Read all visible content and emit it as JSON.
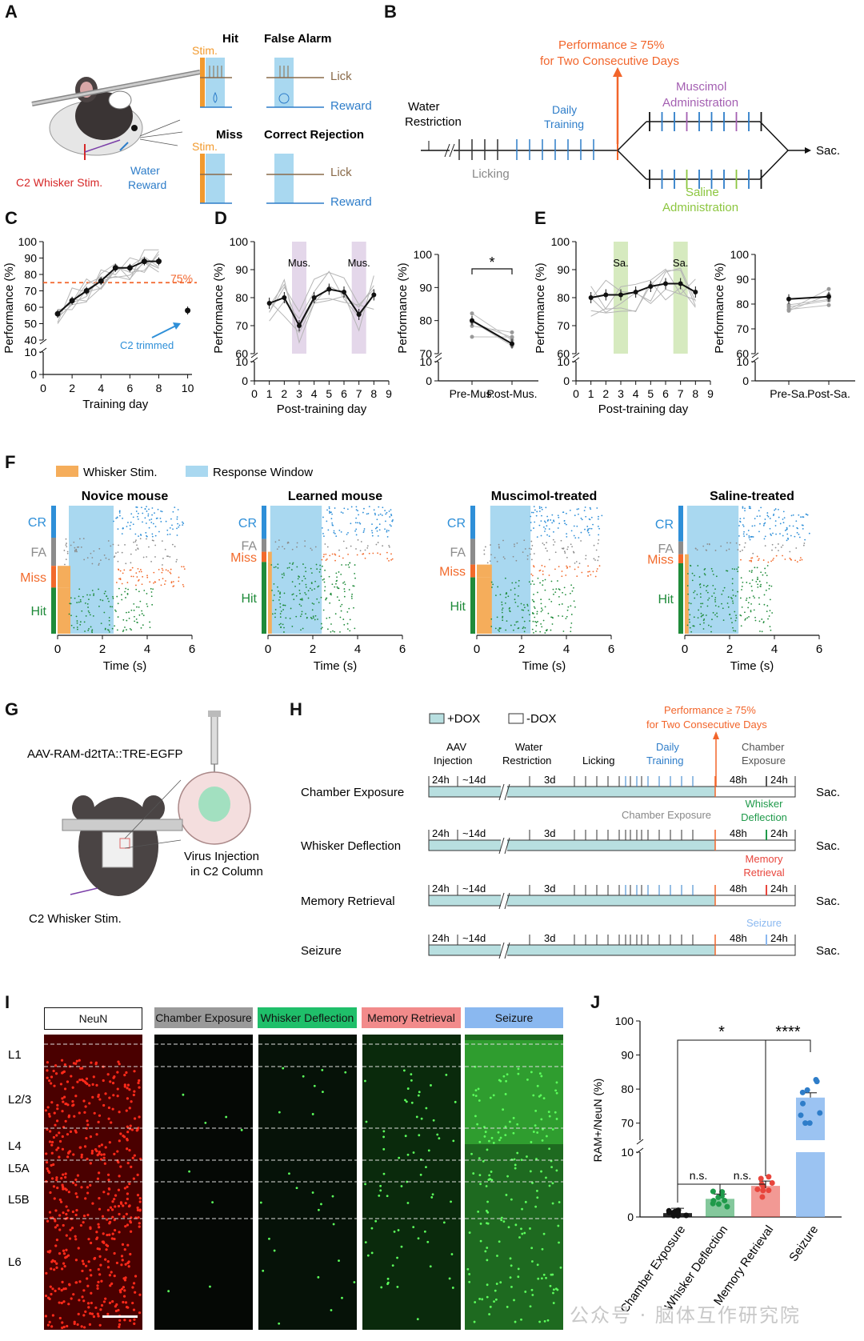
{
  "panels": {
    "A": {
      "letter": "A",
      "hit": "Hit",
      "false_alarm": "False Alarm",
      "miss": "Miss",
      "correct_rejection": "Correct Rejection",
      "stim": "Stim.",
      "lick": "Lick",
      "reward": "Reward",
      "whisker_stim": "C2 Whisker Stim.",
      "water_reward_1": "Water",
      "water_reward_2": "Reward",
      "colors": {
        "stim": "#f29a2e",
        "window": "#a9d8f0",
        "lick": "#8a6b4a",
        "reward": "#2e7dc9",
        "whisker": "#d62828"
      }
    },
    "B": {
      "letter": "B",
      "performance_1": "Performance ≥ 75%",
      "performance_2": "for Two Consecutive Days",
      "water_1": "Water",
      "water_2": "Restriction",
      "licking": "Licking",
      "daily_1": "Daily",
      "daily_2": "Training",
      "muscimol_1": "Muscimol",
      "muscimol_2": "Administration",
      "saline_1": "Saline",
      "saline_2": "Administration",
      "sac": "Sac.",
      "colors": {
        "orange": "#f2652b",
        "blue": "#2e7dc9",
        "purple": "#a45fb2",
        "green": "#8cc63f"
      }
    },
    "C": {
      "letter": "C",
      "ylabel": "Performance (%)",
      "xlabel": "Training day",
      "threshold_label": "75%",
      "annotation": "C2 trimmed"
    },
    "D": {
      "letter": "D",
      "ylabel": "Performance (%)",
      "xlabel": "Post-training day",
      "shade_label": "Mus.",
      "star": "*",
      "cat1": "Pre-Mus.",
      "cat2": "Post-Mus."
    },
    "E": {
      "letter": "E",
      "ylabel": "Performance (%)",
      "xlabel": "Post-training day",
      "shade_label": "Sa.",
      "cat1": "Pre-Sa.",
      "cat2": "Post-Sa."
    },
    "F": {
      "letter": "F",
      "legend_stim": "Whisker Stim.",
      "legend_window": "Response Window",
      "titles": [
        "Novice mouse",
        "Learned mouse",
        "Muscimol-treated",
        "Saline-treated"
      ],
      "rows": [
        "CR",
        "FA",
        "Miss",
        "Hit"
      ],
      "xlabel": "Time (s)",
      "colors": {
        "CR": "#2e8fd8",
        "FA": "#8c8c8c",
        "Miss": "#f26a2b",
        "Hit": "#1f8b3a"
      }
    },
    "G": {
      "letter": "G",
      "construct": "AAV-RAM-d2tTA::TRE-EGFP",
      "inj_1": "Virus Injection",
      "inj_2": "in C2 Column",
      "stim": "C2 Whisker Stim."
    },
    "H": {
      "letter": "H",
      "plus_dox": "+DOX",
      "minus_dox": "-DOX",
      "performance_1": "Performance ≥ 75%",
      "performance_2": "for Two Consecutive Days",
      "aav_1": "AAV",
      "aav_2": "Injection",
      "water_1": "Water",
      "water_2": "Restriction",
      "licking": "Licking",
      "daily_1": "Daily",
      "daily_2": "Training",
      "chamber_1": "Chamber",
      "chamber_2": "Exposure",
      "t24": "24h",
      "t14": "~14d",
      "t3": "3d",
      "t48": "48h",
      "sac": "Sac.",
      "rows": [
        "Chamber Exposure",
        "Whisker Deflection",
        "Memory Retrieval",
        "Seizure"
      ],
      "row2_note": "Chamber Exposure",
      "whisker_1": "Whisker",
      "whisker_2": "Deflection",
      "memory_1": "Memory",
      "memory_2": "Retrieval",
      "seizure": "Seizure"
    },
    "I": {
      "letter": "I",
      "headers": [
        "NeuN",
        "Chamber Exposure",
        "Whisker Deflection",
        "Memory Retrieval",
        "Seizure"
      ],
      "header_colors": [
        "#ffffff",
        "#9a9a9a",
        "#1fbf6a",
        "#f28b8b",
        "#8ab8f0"
      ],
      "layers": [
        "L1",
        "L2/3",
        "L4",
        "L5A",
        "L5B",
        "L6"
      ]
    },
    "J": {
      "letter": "J",
      "ylabel": "RAM+/NeuN (%)",
      "star1": "*",
      "star2": "****",
      "ns": "n.s."
    }
  },
  "watermark": "公众号 · 脑体互作研究院",
  "chart_data": [
    {
      "id": "C",
      "type": "line",
      "xlabel": "Training day",
      "ylabel": "Performance (%)",
      "ylim": [
        0,
        100
      ],
      "x_ticks": [
        0,
        2,
        4,
        6,
        8,
        10
      ],
      "y_ticks": [
        0,
        10,
        40,
        50,
        60,
        70,
        80,
        90,
        100
      ],
      "threshold": 75,
      "threshold_label": "75%",
      "x": [
        1,
        2,
        3,
        4,
        5,
        6,
        7,
        8
      ],
      "series": [
        {
          "values": [
            56,
            64,
            70,
            76,
            84,
            84,
            88,
            88
          ]
        }
      ],
      "extra_point": {
        "x": 10,
        "y": 58,
        "label": "C2 trimmed"
      }
    },
    {
      "id": "D-left",
      "type": "line",
      "xlabel": "Post-training day",
      "ylabel": "Performance (%)",
      "ylim": [
        0,
        100
      ],
      "x_ticks": [
        0,
        1,
        2,
        3,
        4,
        5,
        6,
        7,
        8,
        9
      ],
      "y_ticks": [
        0,
        10,
        60,
        70,
        80,
        90,
        100
      ],
      "shaded_days": [
        3,
        7
      ],
      "shade_label": "Mus.",
      "x": [
        1,
        2,
        3,
        4,
        5,
        6,
        7,
        8
      ],
      "series": [
        {
          "values": [
            78,
            80,
            70,
            80,
            83,
            82,
            74,
            81
          ]
        }
      ]
    },
    {
      "id": "D-right",
      "type": "line",
      "ylabel": "Performance (%)",
      "categories": [
        "Pre-Mus.",
        "Post-Mus."
      ],
      "ylim": [
        0,
        100
      ],
      "y_ticks": [
        0,
        10,
        70,
        80,
        90,
        100
      ],
      "series": [
        {
          "values": [
            80,
            73
          ]
        }
      ],
      "significance": "*"
    },
    {
      "id": "E-left",
      "type": "line",
      "xlabel": "Post-training day",
      "ylabel": "Performance (%)",
      "ylim": [
        0,
        100
      ],
      "x_ticks": [
        0,
        1,
        2,
        3,
        4,
        5,
        6,
        7,
        8,
        9
      ],
      "y_ticks": [
        0,
        10,
        60,
        70,
        80,
        90,
        100
      ],
      "shaded_days": [
        3,
        7
      ],
      "shade_label": "Sa.",
      "x": [
        1,
        2,
        3,
        4,
        5,
        6,
        7,
        8
      ],
      "series": [
        {
          "values": [
            80,
            81,
            81,
            82,
            84,
            85,
            85,
            82
          ]
        }
      ]
    },
    {
      "id": "E-right",
      "type": "line",
      "ylabel": "Performance (%)",
      "categories": [
        "Pre-Sa.",
        "Post-Sa."
      ],
      "ylim": [
        0,
        100
      ],
      "y_ticks": [
        0,
        10,
        60,
        70,
        80,
        90,
        100
      ],
      "series": [
        {
          "values": [
            82,
            83
          ]
        }
      ]
    },
    {
      "id": "J",
      "type": "bar",
      "ylabel": "RAM+/NeuN (%)",
      "categories": [
        "Chamber Exposure",
        "Whisker Deflection",
        "Memory Retrieval",
        "Seizure"
      ],
      "values": [
        0.6,
        2.8,
        4.8,
        77.5
      ],
      "ylim": [
        0,
        100
      ],
      "y_ticks": [
        0,
        10,
        70,
        80,
        90,
        100
      ],
      "colors": [
        "#111111",
        "#1f9a4a",
        "#e8453c",
        "#8ab8f0"
      ],
      "comparisons": [
        "n.s.",
        "n.s.",
        "*",
        "****"
      ]
    }
  ]
}
